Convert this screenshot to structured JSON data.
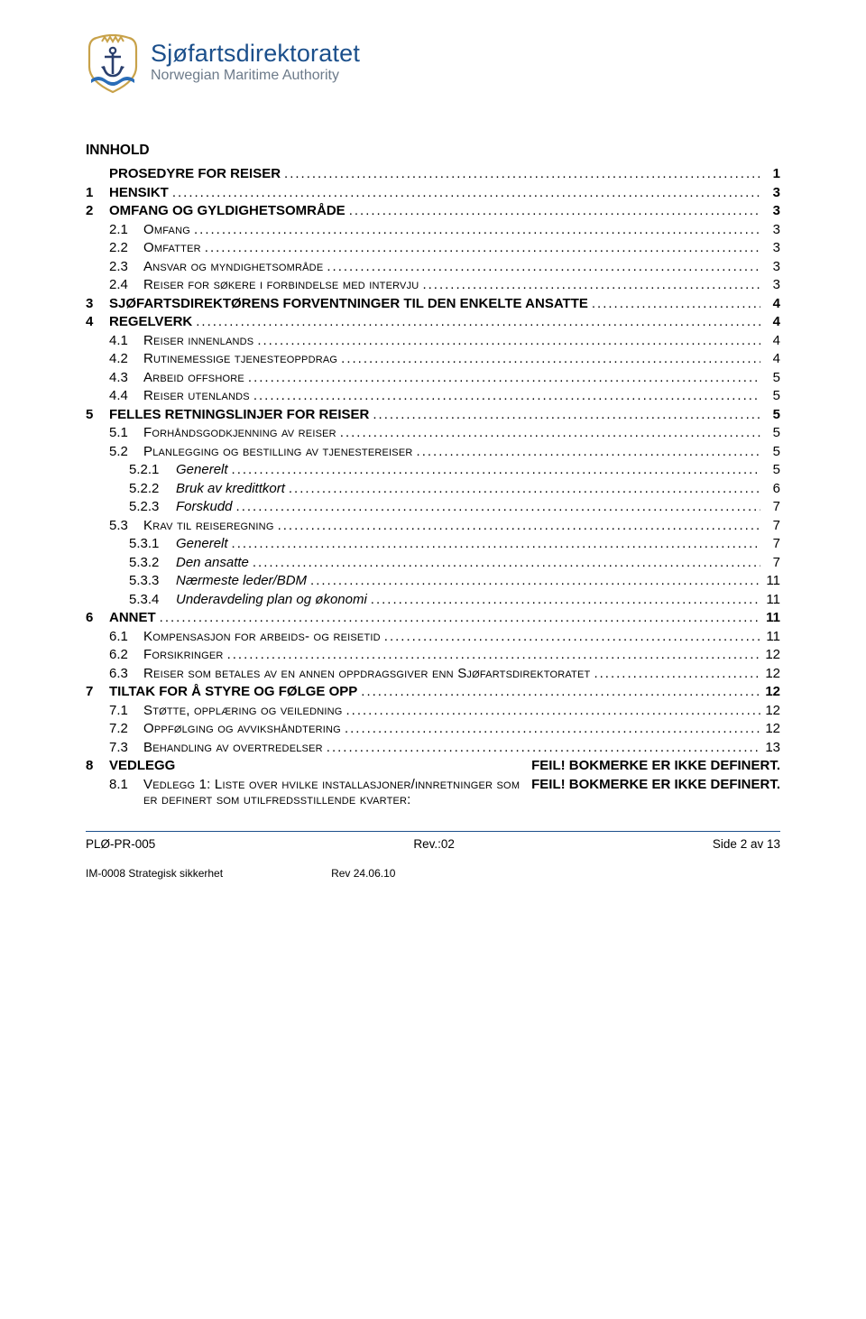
{
  "header": {
    "org_line1": "Sjøfartsdirektoratet",
    "org_line2": "Norwegian Maritime Authority",
    "logo_colors": {
      "shield_border": "#c8a24a",
      "shield_fill": "#ffffff",
      "crown": "#c8a24a",
      "anchor": "#2a3f6d",
      "wave": "#2a6db8"
    }
  },
  "title": "INNHOLD",
  "toc": [
    {
      "indent": 0,
      "num": "",
      "label": "PROSEDYRE FOR REISER",
      "page": "1",
      "bold": true
    },
    {
      "indent": 0,
      "num": "1",
      "label": "HENSIKT",
      "page": "3",
      "bold": true
    },
    {
      "indent": 0,
      "num": "2",
      "label": "OMFANG OG GYLDIGHETSOMRÅDE",
      "page": "3",
      "bold": true
    },
    {
      "indent": 1,
      "num": "2.1",
      "label": "Omfang",
      "page": "3",
      "smallcaps": true
    },
    {
      "indent": 1,
      "num": "2.2",
      "label": "Omfatter",
      "page": "3",
      "smallcaps": true
    },
    {
      "indent": 1,
      "num": "2.3",
      "label": "Ansvar og myndighetsområde",
      "page": "3",
      "smallcaps": true
    },
    {
      "indent": 1,
      "num": "2.4",
      "label": "Reiser for søkere i forbindelse med intervju",
      "page": "3",
      "smallcaps": true
    },
    {
      "indent": 0,
      "num": "3",
      "label": "SJØFARTSDIREKTØRENS FORVENTNINGER TIL DEN ENKELTE ANSATTE",
      "page": "4",
      "bold": true
    },
    {
      "indent": 0,
      "num": "4",
      "label": "REGELVERK",
      "page": "4",
      "bold": true
    },
    {
      "indent": 1,
      "num": "4.1",
      "label": "Reiser innenlands",
      "page": "4",
      "smallcaps": true
    },
    {
      "indent": 1,
      "num": "4.2",
      "label": "Rutinemessige tjenesteoppdrag",
      "page": "4",
      "smallcaps": true
    },
    {
      "indent": 1,
      "num": "4.3",
      "label": "Arbeid offshore",
      "page": "5",
      "smallcaps": true
    },
    {
      "indent": 1,
      "num": "4.4",
      "label": "Reiser utenlands",
      "page": "5",
      "smallcaps": true
    },
    {
      "indent": 0,
      "num": "5",
      "label": "FELLES RETNINGSLINJER FOR REISER",
      "page": "5",
      "bold": true
    },
    {
      "indent": 1,
      "num": "5.1",
      "label": "Forhåndsgodkjenning av reiser",
      "page": "5",
      "smallcaps": true
    },
    {
      "indent": 1,
      "num": "5.2",
      "label": "Planlegging og bestilling av tjenestereiser",
      "page": "5",
      "smallcaps": true
    },
    {
      "indent": 2,
      "num": "5.2.1",
      "label": "Generelt",
      "page": "5",
      "italic": true
    },
    {
      "indent": 2,
      "num": "5.2.2",
      "label": "Bruk av kredittkort",
      "page": "6",
      "italic": true
    },
    {
      "indent": 2,
      "num": "5.2.3",
      "label": "Forskudd",
      "page": "7",
      "italic": true
    },
    {
      "indent": 1,
      "num": "5.3",
      "label": "Krav til reiseregning",
      "page": "7",
      "smallcaps": true
    },
    {
      "indent": 2,
      "num": "5.3.1",
      "label": "Generelt",
      "page": "7",
      "italic": true
    },
    {
      "indent": 2,
      "num": "5.3.2",
      "label": "Den ansatte",
      "page": "7",
      "italic": true
    },
    {
      "indent": 2,
      "num": "5.3.3",
      "label": "Nærmeste leder/BDM",
      "page": "11",
      "italic": true
    },
    {
      "indent": 2,
      "num": "5.3.4",
      "label": "Underavdeling plan og økonomi",
      "page": "11",
      "italic": true
    },
    {
      "indent": 0,
      "num": "6",
      "label": "ANNET",
      "page": "11",
      "bold": true
    },
    {
      "indent": 1,
      "num": "6.1",
      "label": "Kompensasjon for arbeids- og reisetid",
      "page": "11",
      "smallcaps": true
    },
    {
      "indent": 1,
      "num": "6.2",
      "label": "Forsikringer",
      "page": "12",
      "smallcaps": true
    },
    {
      "indent": 1,
      "num": "6.3",
      "label": "Reiser som betales av en annen oppdragsgiver enn Sjøfartsdirektoratet",
      "page": "12",
      "smallcaps": true
    },
    {
      "indent": 0,
      "num": "7",
      "label": "TILTAK FOR Å STYRE OG FØLGE OPP",
      "page": "12",
      "bold": true
    },
    {
      "indent": 1,
      "num": "7.1",
      "label": "Støtte, opplæring og veiledning",
      "page": "12",
      "smallcaps": true
    },
    {
      "indent": 1,
      "num": "7.2",
      "label": "Oppfølging og avvikshåndtering",
      "page": "12",
      "smallcaps": true
    },
    {
      "indent": 1,
      "num": "7.3",
      "label": "Behandling av overtredelser",
      "page": "13",
      "smallcaps": true
    },
    {
      "indent": 0,
      "num": "8",
      "label": "VEDLEGG",
      "page": "FEIL! BOKMERKE ER IKKE DEFINERT.",
      "bold": true,
      "nodots": true
    },
    {
      "indent": 1,
      "num": "8.1",
      "label": "Vedlegg 1: Liste over hvilke installasjoner/innretninger som er definert som utilfredsstillende kvarter:",
      "page": " FEIL! BOKMERKE ER IKKE DEFINERT.",
      "smallcaps": true,
      "nodots": true,
      "wrap": true,
      "page_bold": true
    }
  ],
  "footer": {
    "left": "PLØ-PR-005",
    "center": "Rev.:02",
    "right": "Side 2 av 13",
    "sub_left": "IM-0008 Strategisk sikkerhet",
    "sub_right": "Rev 24.06.10",
    "rule_color": "#1b4f8b"
  }
}
